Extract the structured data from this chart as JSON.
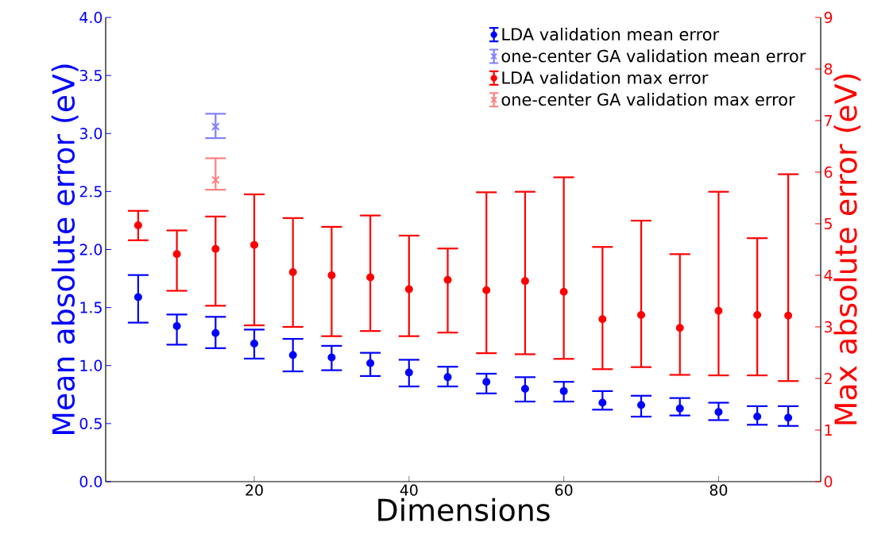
{
  "chart_data": {
    "type": "scatter",
    "xlabel": "Dimensions",
    "ylabel": "Mean absolute error (eV)",
    "y2label": "Max absolute error (eV)",
    "x": [
      5,
      10,
      15,
      20,
      25,
      30,
      35,
      40,
      45,
      50,
      55,
      60,
      65,
      70,
      75,
      80,
      85,
      89
    ],
    "xlim": [
      0.8,
      93.2
    ],
    "xticks": [
      20,
      40,
      60,
      80
    ],
    "ylim": [
      0,
      4
    ],
    "yticks": [
      {
        "value": 0,
        "label": "0.0"
      },
      {
        "value": 0.5,
        "label": "0.5"
      },
      {
        "value": 1,
        "label": "1.0"
      },
      {
        "value": 1.5,
        "label": "1.5"
      },
      {
        "value": 2,
        "label": "2.0"
      },
      {
        "value": 2.5,
        "label": "2.5"
      },
      {
        "value": 3,
        "label": "3.0"
      },
      {
        "value": 3.5,
        "label": "3.5"
      },
      {
        "value": 4,
        "label": "4.0"
      }
    ],
    "y2lim": [
      0,
      9
    ],
    "y2ticks": [
      0,
      1,
      2,
      3,
      4,
      5,
      6,
      7,
      8,
      9
    ],
    "legend": "top right",
    "series": [
      {
        "name": "LDA validation mean error",
        "color": "#0000ff",
        "marker": "circle",
        "values": [
          1.59,
          1.34,
          1.28,
          1.19,
          1.09,
          1.07,
          1.02,
          0.94,
          0.9,
          0.86,
          0.8,
          0.78,
          0.68,
          0.66,
          0.63,
          0.6,
          0.56,
          0.55
        ],
        "errors": [
          [
            1.37,
            1.78
          ],
          [
            1.18,
            1.44
          ],
          [
            1.15,
            1.42
          ],
          [
            1.06,
            1.31
          ],
          [
            0.95,
            1.23
          ],
          [
            0.96,
            1.17
          ],
          [
            0.91,
            1.11
          ],
          [
            0.82,
            1.05
          ],
          [
            0.82,
            0.99
          ],
          [
            0.76,
            0.93
          ],
          [
            0.69,
            0.9
          ],
          [
            0.69,
            0.86
          ],
          [
            0.62,
            0.78
          ],
          [
            0.56,
            0.74
          ],
          [
            0.57,
            0.72
          ],
          [
            0.53,
            0.68
          ],
          [
            0.49,
            0.65
          ],
          [
            0.48,
            0.65
          ]
        ]
      },
      {
        "name": "one-center GA validation mean error",
        "color": "#8080ff",
        "marker": "cross",
        "x": [
          15
        ],
        "values": [
          3.06
        ],
        "errors": [
          [
            2.96,
            3.17
          ]
        ]
      },
      {
        "name": "LDA validation max error",
        "color": "#ff0000",
        "marker": "circle",
        "axis": "y2",
        "values": [
          4.97,
          4.41,
          4.51,
          4.59,
          4.06,
          4.0,
          3.96,
          3.73,
          3.91,
          3.71,
          3.89,
          3.68,
          3.15,
          3.23,
          2.98,
          3.31,
          3.23,
          3.22
        ],
        "errors": [
          [
            4.68,
            5.25
          ],
          [
            3.7,
            4.87
          ],
          [
            3.41,
            5.14
          ],
          [
            3.03,
            5.57
          ],
          [
            3.0,
            5.11
          ],
          [
            2.82,
            4.94
          ],
          [
            2.92,
            5.16
          ],
          [
            2.82,
            4.77
          ],
          [
            2.89,
            4.52
          ],
          [
            2.49,
            5.61
          ],
          [
            2.47,
            5.62
          ],
          [
            2.38,
            5.9
          ],
          [
            2.18,
            4.55
          ],
          [
            2.22,
            5.06
          ],
          [
            2.07,
            4.41
          ],
          [
            2.06,
            5.62
          ],
          [
            2.06,
            4.72
          ],
          [
            1.95,
            5.96
          ]
        ]
      },
      {
        "name": "one-center GA validation max error",
        "color": "#ff8080",
        "marker": "cross",
        "axis": "y2",
        "x": [
          15
        ],
        "values": [
          5.85
        ],
        "errors": [
          [
            5.66,
            6.27
          ]
        ]
      }
    ]
  }
}
